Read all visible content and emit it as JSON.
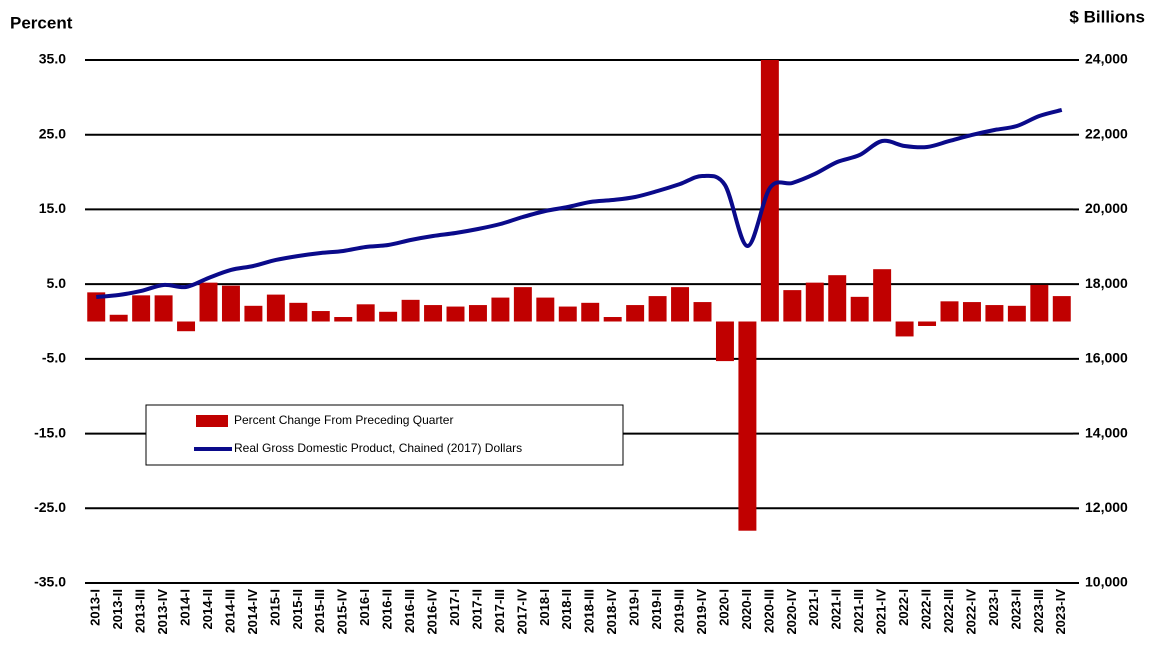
{
  "chart_data": {
    "type": "combo",
    "y_label": "Percent",
    "y2_label": "$ Billions",
    "categories": [
      "2013-I",
      "2013-II",
      "2013-III",
      "2013-IV",
      "2014-I",
      "2014-II",
      "2014-III",
      "2014-IV",
      "2015-I",
      "2015-II",
      "2015-III",
      "2015-IV",
      "2016-I",
      "2016-II",
      "2016-III",
      "2016-IV",
      "2017-I",
      "2017-II",
      "2017-III",
      "2017-IV",
      "2018-I",
      "2018-II",
      "2018-III",
      "2018-IV",
      "2019-I",
      "2019-II",
      "2019-III",
      "2019-IV",
      "2020-I",
      "2020-II",
      "2020-III",
      "2020-IV",
      "2021-I",
      "2021-II",
      "2021-III",
      "2021-IV",
      "2022-I",
      "2022-II",
      "2022-III",
      "2022-IV",
      "2023-I",
      "2023-II",
      "2023-III",
      "2023-IV"
    ],
    "series": [
      {
        "name": "Percent Change From Preceding Quarter",
        "type": "bar",
        "color": "#c00000",
        "values": [
          3.9,
          0.9,
          3.5,
          3.5,
          -1.3,
          5.2,
          4.8,
          2.1,
          3.6,
          2.5,
          1.4,
          0.6,
          2.3,
          1.3,
          2.9,
          2.2,
          2.0,
          2.2,
          3.2,
          4.6,
          3.2,
          2.0,
          2.5,
          0.6,
          2.2,
          3.4,
          4.6,
          2.6,
          -5.3,
          -28.0,
          35.0,
          4.2,
          5.2,
          6.2,
          3.3,
          7.0,
          -2.0,
          -0.6,
          2.7,
          2.6,
          2.2,
          2.1,
          4.9,
          3.4
        ]
      },
      {
        "name": "Real Gross Domestic Product, Chained (2017) Dollars",
        "type": "line",
        "color": "#0a0a8a",
        "axis": "y2",
        "values": [
          17656,
          17710,
          17817,
          17978,
          17924,
          18165,
          18380,
          18486,
          18647,
          18754,
          18834,
          18888,
          18995,
          19048,
          19182,
          19289,
          19369,
          19476,
          19610,
          19797,
          19958,
          20065,
          20199,
          20252,
          20333,
          20493,
          20681,
          20895,
          20654,
          19021,
          20574,
          20708,
          20949,
          21270,
          21457,
          21832,
          21698,
          21671,
          21832,
          21993,
          22126,
          22233,
          22501,
          22662
        ]
      }
    ],
    "ylim": [
      -35,
      35
    ],
    "yticks": [
      {
        "value": -35,
        "label": "-35.0"
      },
      {
        "value": -25,
        "label": "-25.0"
      },
      {
        "value": -15,
        "label": "-15.0"
      },
      {
        "value": -5,
        "label": "-5.0"
      },
      {
        "value": 5,
        "label": "5.0"
      },
      {
        "value": 15,
        "label": "15.0"
      },
      {
        "value": 25,
        "label": "25.0"
      },
      {
        "value": 35,
        "label": "35.0"
      }
    ],
    "y2lim": [
      10000,
      24000
    ],
    "y2ticks": [
      {
        "value": 10000,
        "label": "10,000"
      },
      {
        "value": 12000,
        "label": "12,000"
      },
      {
        "value": 14000,
        "label": "14,000"
      },
      {
        "value": 16000,
        "label": "16,000"
      },
      {
        "value": 18000,
        "label": "18,000"
      },
      {
        "value": 20000,
        "label": "20,000"
      },
      {
        "value": 22000,
        "label": "22,000"
      },
      {
        "value": 24000,
        "label": "24,000"
      }
    ],
    "grid": true,
    "legend": "center-left"
  }
}
